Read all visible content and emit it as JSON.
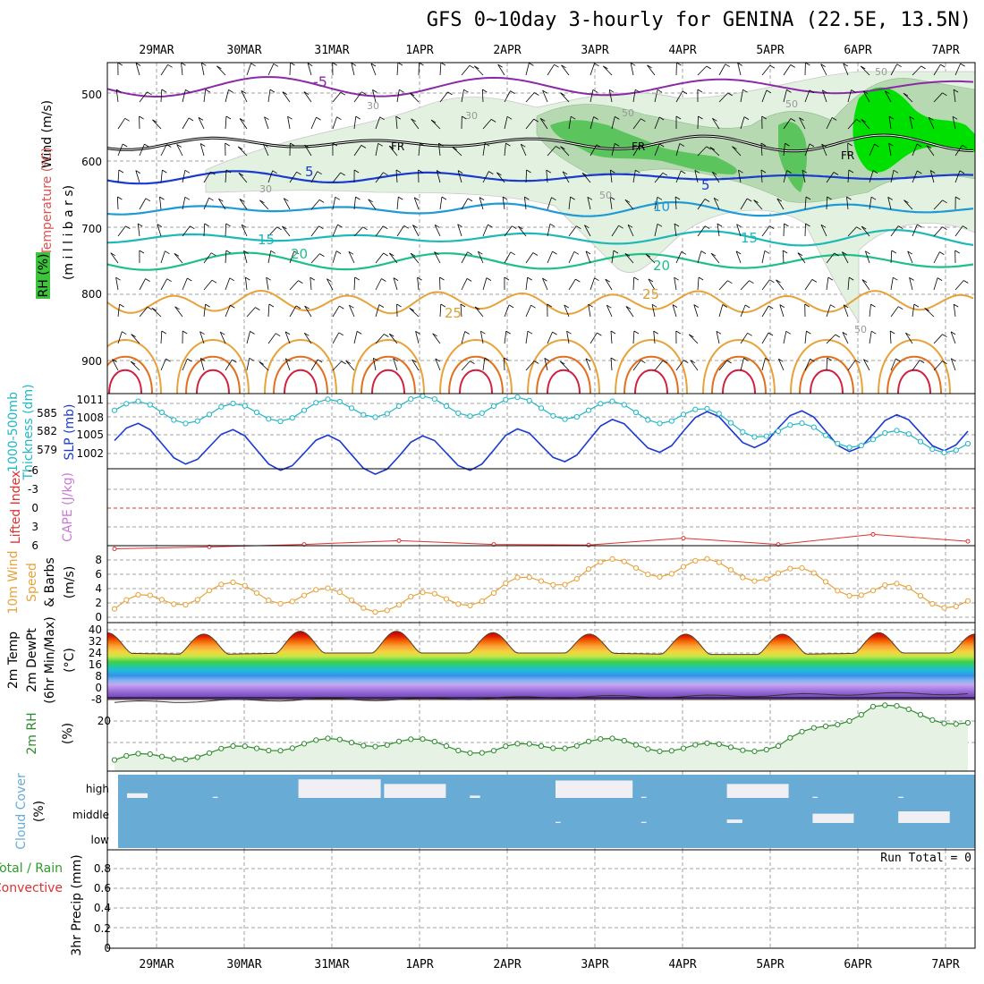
{
  "title": "GFS 0~10day 3-hourly for GENINA (22.5E, 13.5N)",
  "dates": [
    "29MAR",
    "30MAR",
    "31MAR",
    "1APR",
    "2APR",
    "3APR",
    "4APR",
    "5APR",
    "6APR",
    "7APR"
  ],
  "colors": {
    "grid": "#a0a0a0",
    "rh_light": "#e2f1e0",
    "rh_mid": "#b6d9b1",
    "rh_dark": "#5cc45c",
    "rh_bright": "#00e000",
    "cape_zero": "#e03030",
    "slp": "#1a3ad0",
    "thickness": "#21b7c7",
    "wind10": "#e8a23a",
    "rh2m": "#2e8b2e",
    "cloud": "#68acd6",
    "cloud_gap": "#f0f0f4",
    "precip_green": "#2c9c2c"
  },
  "panels": {
    "sounding": {
      "ylabels": [
        "Wind (m/s)",
        "Temperature (°C)",
        "RH (%)",
        "(m i l l i b a r s)"
      ],
      "ticks": [
        "500",
        "600",
        "700",
        "800",
        "900"
      ],
      "contour_labels": [
        "-5",
        "FR",
        "FR",
        "FR",
        "5",
        "5",
        "10",
        "15",
        "15",
        "20",
        "20",
        "25",
        "25",
        "30",
        "30",
        "30",
        "50",
        "50",
        "50",
        "50",
        "50"
      ]
    },
    "slp": {
      "ylabels": [
        "1000-500mb",
        "Thickness (dm)",
        "SLP (mb)"
      ],
      "left_ticks": [
        "585",
        "582",
        "579"
      ],
      "right_ticks": [
        "1011",
        "1008",
        "1005",
        "1002"
      ]
    },
    "cape": {
      "ylabels": [
        "Lifted Index",
        "CAPE (J/kg)"
      ],
      "ticks": [
        "-6",
        "-3",
        "0",
        "3",
        "6"
      ]
    },
    "wind10": {
      "ylabels": [
        "10m Wind",
        "Speed",
        "& Barbs",
        "(m/s)"
      ],
      "ticks": [
        "8",
        "6",
        "4",
        "2",
        "0"
      ]
    },
    "temp2m": {
      "ylabels": [
        "2m Temp",
        "2m DewPt",
        "(6hr Min/Max)",
        "(°C)"
      ],
      "ticks": [
        "40",
        "32",
        "24",
        "16",
        "8",
        "0",
        "-8"
      ]
    },
    "rh2m": {
      "ylabels": [
        "2m RH",
        "(%)"
      ],
      "ticks": [
        "20"
      ]
    },
    "cloud": {
      "ylabels": [
        "Cloud Cover",
        "(%)"
      ],
      "levels": [
        "high",
        "middle",
        "low"
      ]
    },
    "precip": {
      "ylabels": [
        "Total / Rain",
        "Convective",
        "3hr Precip (mm)"
      ],
      "ticks": [
        "0.8",
        "0.6",
        "0.4",
        "0.2",
        "0"
      ],
      "run_total": "Run Total = 0"
    }
  },
  "chart_data": [
    {
      "type": "line",
      "title": "1000-500mb Thickness (dm) and SLP (mb)",
      "x": [
        "29MAR",
        "30MAR",
        "31MAR",
        "1APR",
        "2APR",
        "3APR",
        "4APR",
        "5APR",
        "6APR",
        "7APR"
      ],
      "series": [
        {
          "name": "SLP (mb)",
          "values": [
            1004.5,
            1003.5,
            1002.5,
            1002.0,
            1003.0,
            1004.5,
            1006.0,
            1006.5,
            1005.5,
            1006.0
          ]
        },
        {
          "name": "1000-500mb Thickness (dm)",
          "values": [
            584.0,
            583.5,
            584.0,
            584.5,
            584.5,
            584.0,
            583.5,
            581.5,
            580.5,
            580.0
          ]
        }
      ],
      "ylim_left": [
        577,
        586
      ],
      "ylim_right": [
        1000,
        1012
      ]
    },
    {
      "type": "line",
      "title": "Lifted Index",
      "x": [
        "29MAR",
        "30MAR",
        "31MAR",
        "1APR",
        "2APR",
        "3APR",
        "4APR",
        "5APR",
        "6APR",
        "7APR"
      ],
      "series": [
        {
          "name": "Lifted Index",
          "values": [
            6.5,
            6.2,
            5.8,
            5.2,
            5.8,
            5.9,
            4.8,
            5.8,
            4.2,
            5.3
          ]
        }
      ],
      "ylim": [
        6,
        -6
      ]
    },
    {
      "type": "line",
      "title": "10m Wind Speed (m/s)",
      "x": [
        "29MAR",
        "30MAR",
        "31MAR",
        "1APR",
        "2APR",
        "3APR",
        "4APR",
        "5APR",
        "6APR",
        "7APR"
      ],
      "series": [
        {
          "name": "10m Wind Speed",
          "values": [
            1.5,
            3.8,
            3.2,
            2.0,
            3.5,
            6.5,
            6.8,
            6.0,
            3.8,
            2.5
          ]
        }
      ],
      "ylim": [
        0,
        9
      ]
    },
    {
      "type": "area",
      "title": "2m Temp (°C)",
      "x": [
        "29MAR",
        "30MAR",
        "31MAR",
        "1APR",
        "2APR",
        "3APR",
        "4APR",
        "5APR",
        "6APR",
        "7APR"
      ],
      "series": [
        {
          "name": "2m Temp max",
          "values": [
            38,
            37,
            39,
            39,
            38,
            37,
            37,
            37,
            38,
            37
          ]
        },
        {
          "name": "2m Temp min",
          "values": [
            24,
            23,
            24,
            24,
            24,
            24,
            23,
            23,
            24,
            24
          ]
        },
        {
          "name": "2m DewPt",
          "values": [
            -10,
            -9,
            -8,
            -8,
            -7,
            -6,
            -6,
            -5,
            -4,
            -4
          ]
        }
      ],
      "ylim": [
        -12,
        42
      ]
    },
    {
      "type": "line",
      "title": "2m RH (%)",
      "x": [
        "29MAR",
        "30MAR",
        "31MAR",
        "1APR",
        "2APR",
        "3APR",
        "4APR",
        "5APR",
        "6APR",
        "7APR"
      ],
      "series": [
        {
          "name": "2m RH",
          "values": [
            4,
            7,
            11,
            12,
            8,
            12,
            9,
            10,
            27,
            20
          ]
        }
      ],
      "ylim": [
        0,
        30
      ]
    },
    {
      "type": "bar",
      "title": "Cloud Cover (%)",
      "categories": [
        "29MAR",
        "30MAR",
        "31MAR",
        "1APR",
        "2APR",
        "3APR",
        "4APR",
        "5APR",
        "6APR",
        "7APR"
      ],
      "series": [
        {
          "name": "high",
          "values": [
            20,
            5,
            80,
            60,
            10,
            75,
            5,
            60,
            5,
            5
          ]
        },
        {
          "name": "middle",
          "values": [
            0,
            0,
            0,
            0,
            0,
            5,
            5,
            15,
            40,
            50
          ]
        },
        {
          "name": "low",
          "values": [
            0,
            0,
            0,
            0,
            0,
            0,
            0,
            0,
            0,
            0
          ]
        }
      ]
    },
    {
      "type": "bar",
      "title": "3hr Precip (mm)",
      "categories": [
        "29MAR",
        "30MAR",
        "31MAR",
        "1APR",
        "2APR",
        "3APR",
        "4APR",
        "5APR",
        "6APR",
        "7APR"
      ],
      "series": [
        {
          "name": "Total / Rain",
          "values": [
            0,
            0,
            0,
            0,
            0,
            0,
            0,
            0,
            0,
            0
          ]
        },
        {
          "name": "Convective",
          "values": [
            0,
            0,
            0,
            0,
            0,
            0,
            0,
            0,
            0,
            0
          ]
        }
      ],
      "ylim": [
        0,
        1
      ]
    }
  ]
}
